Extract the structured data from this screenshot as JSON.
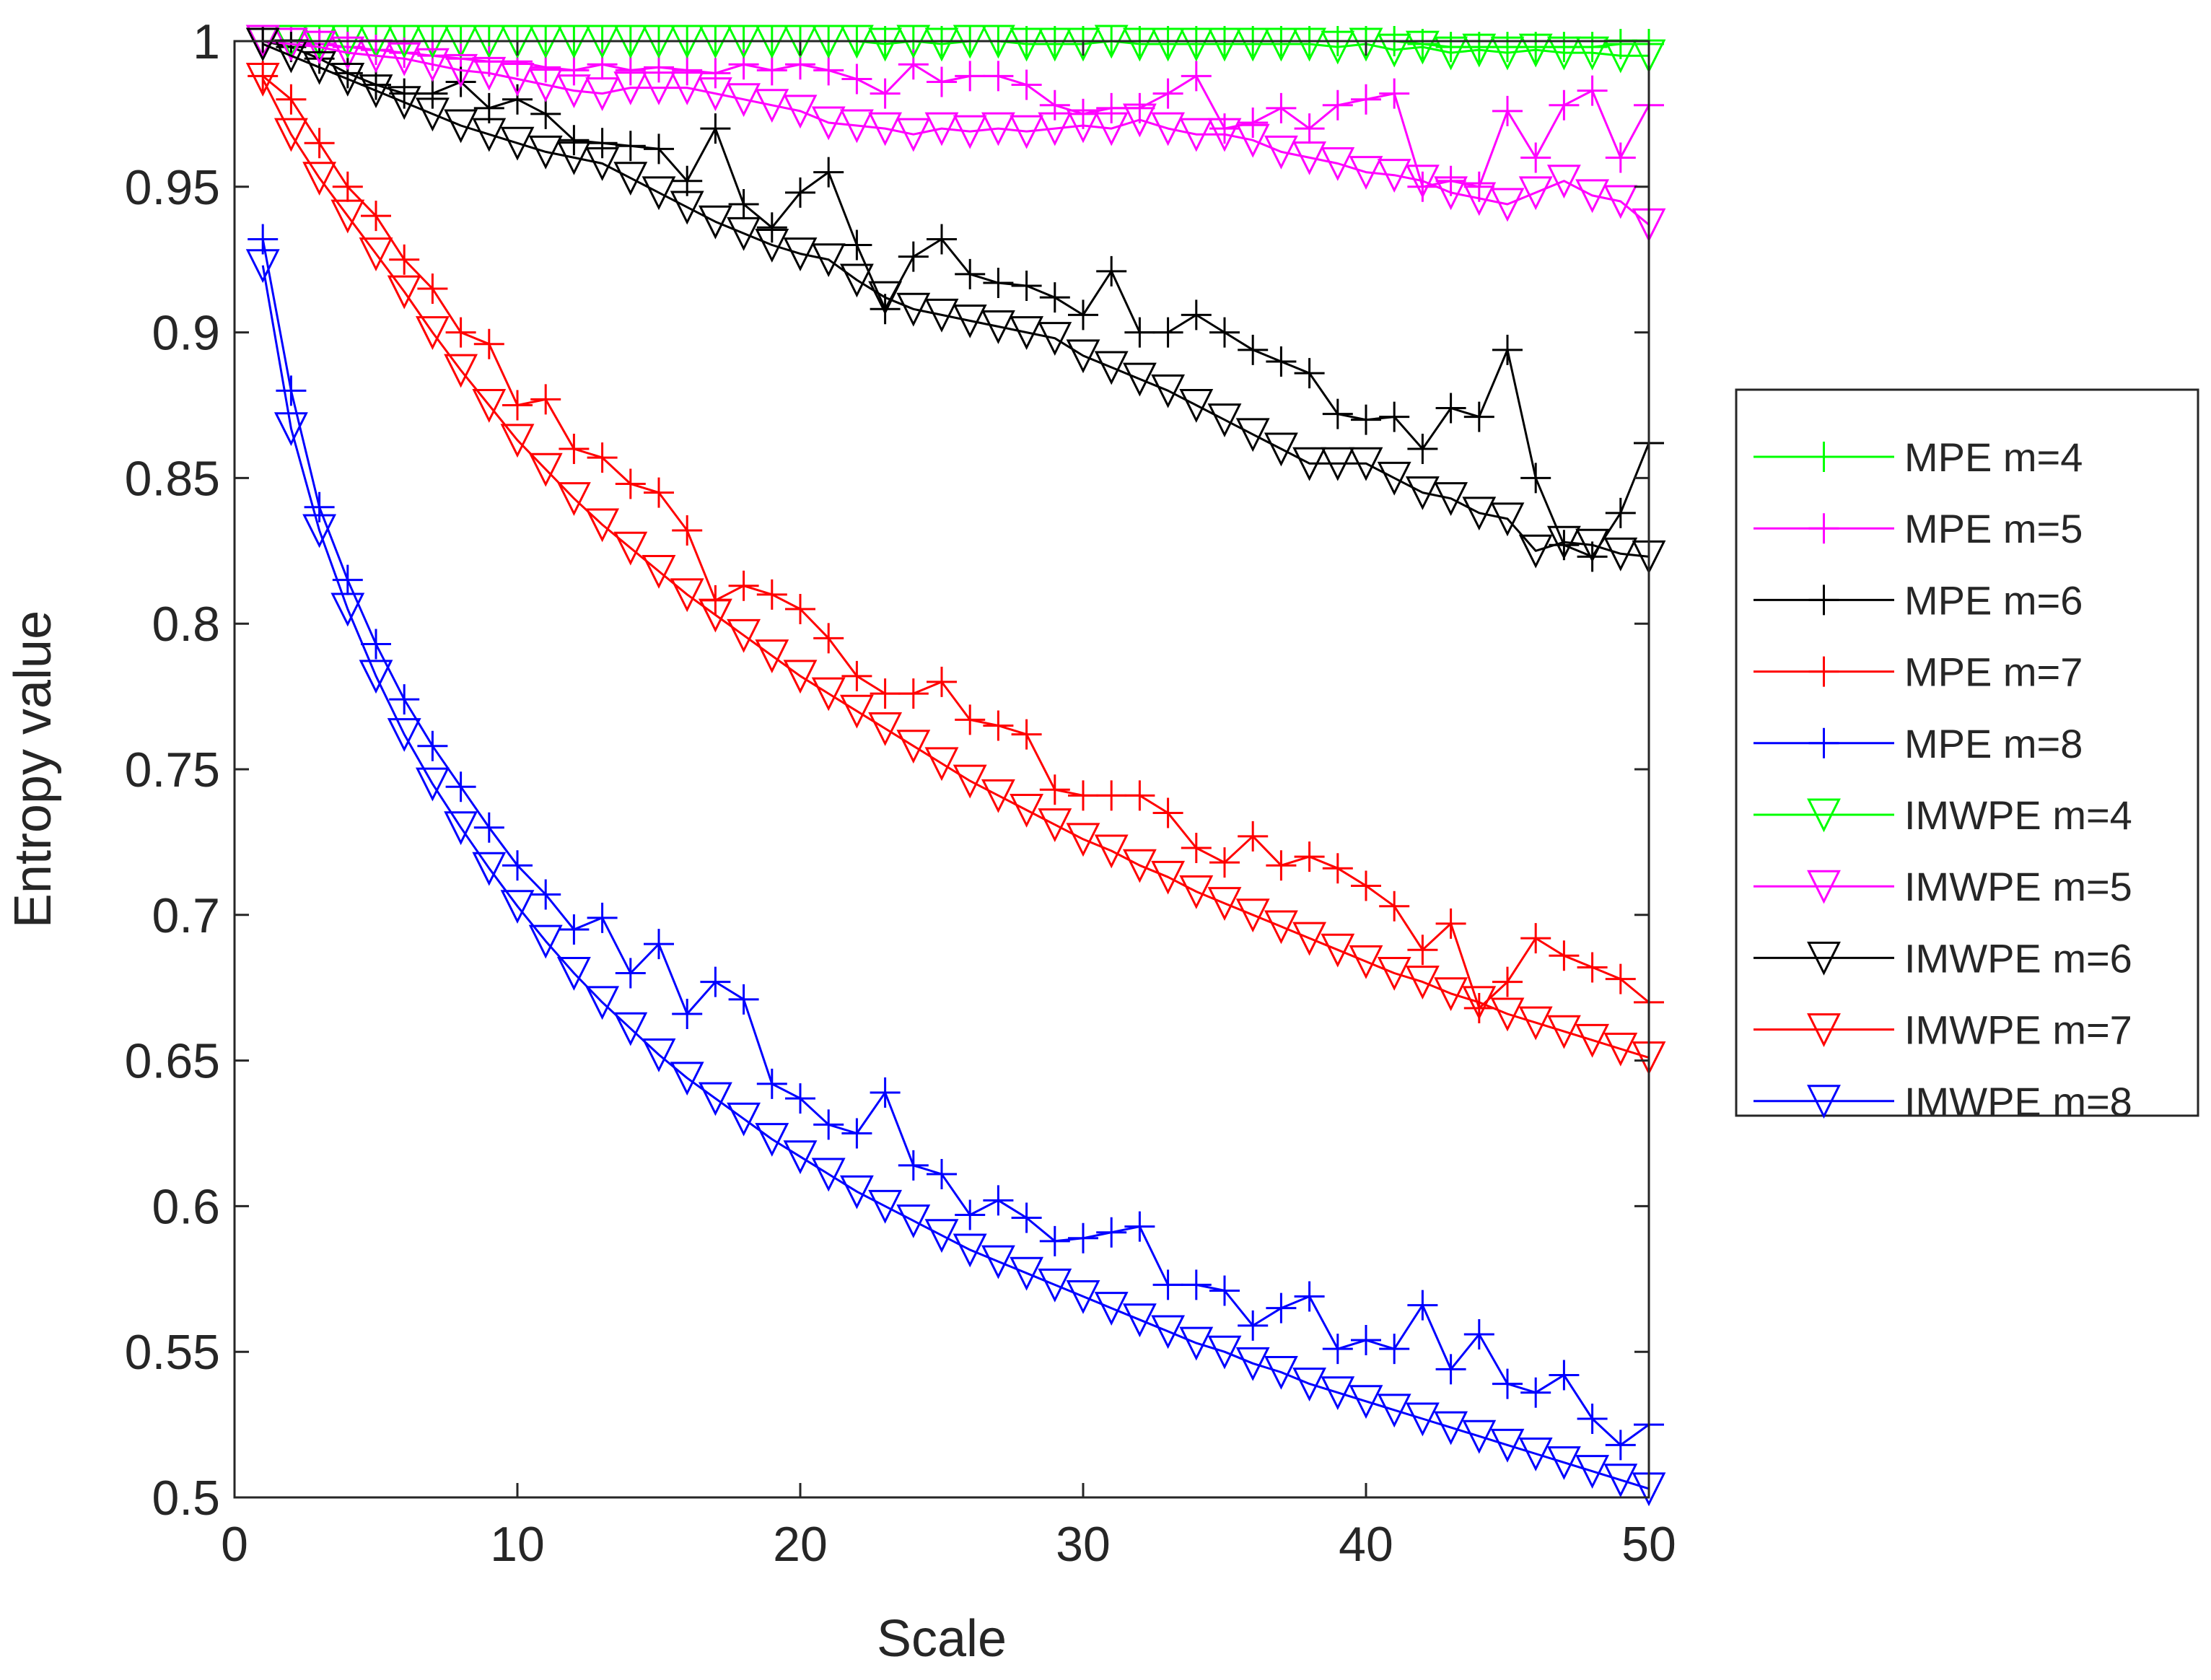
{
  "chart_data": {
    "type": "line",
    "title": "",
    "xlabel": "Scale",
    "ylabel": "Entropy value",
    "xlim": [
      0,
      50
    ],
    "ylim": [
      0.5,
      1
    ],
    "x_ticks": [
      0,
      10,
      20,
      30,
      40,
      50
    ],
    "y_ticks": [
      0.5,
      0.55,
      0.6,
      0.65,
      0.7,
      0.75,
      0.8,
      0.85,
      0.9,
      0.95,
      1
    ],
    "x_tick_labels": [
      "0",
      "10",
      "20",
      "30",
      "40",
      "50"
    ],
    "y_tick_labels": [
      "0.5",
      "0.55",
      "0.6",
      "0.65",
      "0.7",
      "0.75",
      "0.8",
      "0.85",
      "0.9",
      "0.95",
      "1"
    ],
    "grid": false,
    "legend_position": "outside-right",
    "x": [
      1,
      2,
      3,
      4,
      5,
      6,
      7,
      8,
      9,
      10,
      11,
      12,
      13,
      14,
      15,
      16,
      17,
      18,
      19,
      20,
      21,
      22,
      23,
      24,
      25,
      26,
      27,
      28,
      29,
      30,
      31,
      32,
      33,
      34,
      35,
      36,
      37,
      38,
      39,
      40,
      41,
      42,
      43,
      44,
      45,
      46,
      47,
      48,
      49,
      50
    ],
    "series": [
      {
        "name": "MPE m=4",
        "color": "#00ff00",
        "marker": "plus",
        "values": [
          1.0,
          1.0,
          1.0,
          1.0,
          1.0,
          1.0,
          1.0,
          1.0,
          1.0,
          1.0,
          1.0,
          1.0,
          1.0,
          1.0,
          1.0,
          1.0,
          1.0,
          1.0,
          1.0,
          1.0,
          1.0,
          1.0,
          1.0,
          1.0,
          1.0,
          1.0,
          1.0,
          1.0,
          1.0,
          1.0,
          1.0,
          1.0,
          1.0,
          1.0,
          1.0,
          1.0,
          1.0,
          1.0,
          1.0,
          1.0,
          1.0,
          0.999,
          0.998,
          0.998,
          0.998,
          0.998,
          0.998,
          0.998,
          0.999,
          0.999
        ]
      },
      {
        "name": "MPE m=5",
        "color": "#ff00ff",
        "marker": "plus",
        "values": [
          1.0,
          1.0,
          0.999,
          0.998,
          0.997,
          0.996,
          0.995,
          0.994,
          0.993,
          0.993,
          0.991,
          0.99,
          0.992,
          0.99,
          0.991,
          0.99,
          0.989,
          0.992,
          0.99,
          0.992,
          0.99,
          0.987,
          0.982,
          0.992,
          0.986,
          0.988,
          0.988,
          0.985,
          0.978,
          0.975,
          0.977,
          0.977,
          0.982,
          0.988,
          0.97,
          0.972,
          0.977,
          0.97,
          0.978,
          0.98,
          0.982,
          0.95,
          0.952,
          0.95,
          0.976,
          0.96,
          0.978,
          0.983,
          0.96,
          0.978
        ]
      },
      {
        "name": "MPE m=6",
        "color": "#000000",
        "marker": "plus",
        "values": [
          1.0,
          0.998,
          0.994,
          0.989,
          0.985,
          0.982,
          0.982,
          0.986,
          0.977,
          0.98,
          0.975,
          0.966,
          0.965,
          0.964,
          0.963,
          0.952,
          0.97,
          0.944,
          0.936,
          0.948,
          0.955,
          0.93,
          0.908,
          0.926,
          0.932,
          0.92,
          0.917,
          0.916,
          0.912,
          0.906,
          0.921,
          0.9,
          0.9,
          0.906,
          0.9,
          0.894,
          0.89,
          0.886,
          0.872,
          0.87,
          0.871,
          0.86,
          0.874,
          0.871,
          0.894,
          0.85,
          0.827,
          0.823,
          0.838,
          0.862
        ]
      },
      {
        "name": "MPE m=7",
        "color": "#ff0000",
        "marker": "plus",
        "values": [
          0.988,
          0.98,
          0.965,
          0.95,
          0.94,
          0.925,
          0.915,
          0.9,
          0.896,
          0.875,
          0.877,
          0.86,
          0.857,
          0.848,
          0.845,
          0.832,
          0.808,
          0.813,
          0.81,
          0.805,
          0.795,
          0.782,
          0.776,
          0.776,
          0.78,
          0.767,
          0.765,
          0.762,
          0.743,
          0.741,
          0.741,
          0.741,
          0.735,
          0.723,
          0.718,
          0.727,
          0.717,
          0.72,
          0.716,
          0.71,
          0.703,
          0.688,
          0.697,
          0.668,
          0.677,
          0.692,
          0.686,
          0.682,
          0.678,
          0.67
        ]
      },
      {
        "name": "MPE m=8",
        "color": "#0000ff",
        "marker": "plus",
        "values": [
          0.932,
          0.88,
          0.84,
          0.815,
          0.793,
          0.774,
          0.758,
          0.744,
          0.73,
          0.717,
          0.707,
          0.695,
          0.699,
          0.68,
          0.69,
          0.666,
          0.677,
          0.671,
          0.642,
          0.637,
          0.628,
          0.625,
          0.639,
          0.614,
          0.611,
          0.597,
          0.602,
          0.596,
          0.588,
          0.589,
          0.591,
          0.593,
          0.573,
          0.573,
          0.571,
          0.559,
          0.565,
          0.569,
          0.551,
          0.554,
          0.551,
          0.566,
          0.544,
          0.556,
          0.539,
          0.536,
          0.542,
          0.527,
          0.518,
          0.525
        ]
      },
      {
        "name": "IMWPE m=4",
        "color": "#00ff00",
        "marker": "triangle-down",
        "values": [
          1.0,
          1.0,
          1.0,
          1.0,
          1.0,
          1.0,
          1.0,
          1.0,
          1.0,
          1.0,
          1.0,
          1.0,
          1.0,
          1.0,
          1.0,
          1.0,
          1.0,
          1.0,
          1.0,
          1.0,
          1.0,
          1.0,
          0.999,
          1.0,
          0.999,
          1.0,
          1.0,
          0.999,
          0.999,
          0.999,
          1.0,
          0.999,
          0.999,
          0.999,
          0.999,
          0.999,
          0.999,
          0.999,
          0.998,
          0.999,
          0.997,
          0.998,
          0.996,
          0.997,
          0.996,
          0.997,
          0.996,
          0.996,
          0.995,
          0.995
        ]
      },
      {
        "name": "IMWPE m=5",
        "color": "#ff00ff",
        "marker": "triangle-down",
        "values": [
          1.0,
          0.999,
          0.998,
          0.996,
          0.995,
          0.994,
          0.992,
          0.99,
          0.989,
          0.987,
          0.985,
          0.983,
          0.982,
          0.984,
          0.984,
          0.984,
          0.982,
          0.98,
          0.978,
          0.976,
          0.972,
          0.971,
          0.97,
          0.968,
          0.97,
          0.969,
          0.97,
          0.969,
          0.97,
          0.971,
          0.97,
          0.973,
          0.97,
          0.968,
          0.968,
          0.966,
          0.962,
          0.96,
          0.958,
          0.955,
          0.954,
          0.952,
          0.948,
          0.946,
          0.944,
          0.948,
          0.952,
          0.947,
          0.945,
          0.937
        ]
      },
      {
        "name": "IMWPE m=6",
        "color": "#000000",
        "marker": "triangle-down",
        "values": [
          0.999,
          0.995,
          0.991,
          0.987,
          0.983,
          0.979,
          0.975,
          0.971,
          0.968,
          0.965,
          0.962,
          0.96,
          0.958,
          0.953,
          0.948,
          0.943,
          0.938,
          0.934,
          0.93,
          0.927,
          0.925,
          0.918,
          0.912,
          0.908,
          0.906,
          0.904,
          0.902,
          0.9,
          0.898,
          0.892,
          0.888,
          0.884,
          0.88,
          0.875,
          0.87,
          0.865,
          0.86,
          0.855,
          0.855,
          0.855,
          0.85,
          0.845,
          0.843,
          0.838,
          0.836,
          0.825,
          0.828,
          0.827,
          0.824,
          0.823
        ]
      },
      {
        "name": "IMWPE m=7",
        "color": "#ff0000",
        "marker": "triangle-down",
        "values": [
          0.987,
          0.968,
          0.953,
          0.94,
          0.927,
          0.914,
          0.9,
          0.887,
          0.875,
          0.863,
          0.853,
          0.843,
          0.834,
          0.826,
          0.818,
          0.81,
          0.803,
          0.796,
          0.789,
          0.782,
          0.776,
          0.77,
          0.764,
          0.758,
          0.752,
          0.746,
          0.741,
          0.736,
          0.731,
          0.726,
          0.722,
          0.717,
          0.713,
          0.708,
          0.704,
          0.7,
          0.696,
          0.692,
          0.688,
          0.684,
          0.68,
          0.677,
          0.673,
          0.67,
          0.666,
          0.663,
          0.66,
          0.657,
          0.654,
          0.651
        ]
      },
      {
        "name": "IMWPE m=8",
        "color": "#0000ff",
        "marker": "triangle-down",
        "values": [
          0.923,
          0.867,
          0.832,
          0.805,
          0.782,
          0.762,
          0.745,
          0.73,
          0.716,
          0.703,
          0.691,
          0.68,
          0.67,
          0.661,
          0.652,
          0.644,
          0.637,
          0.63,
          0.623,
          0.617,
          0.611,
          0.605,
          0.6,
          0.595,
          0.59,
          0.585,
          0.581,
          0.577,
          0.573,
          0.569,
          0.565,
          0.561,
          0.557,
          0.553,
          0.55,
          0.546,
          0.543,
          0.539,
          0.536,
          0.533,
          0.53,
          0.527,
          0.524,
          0.521,
          0.518,
          0.515,
          0.512,
          0.509,
          0.506,
          0.503
        ]
      }
    ]
  }
}
